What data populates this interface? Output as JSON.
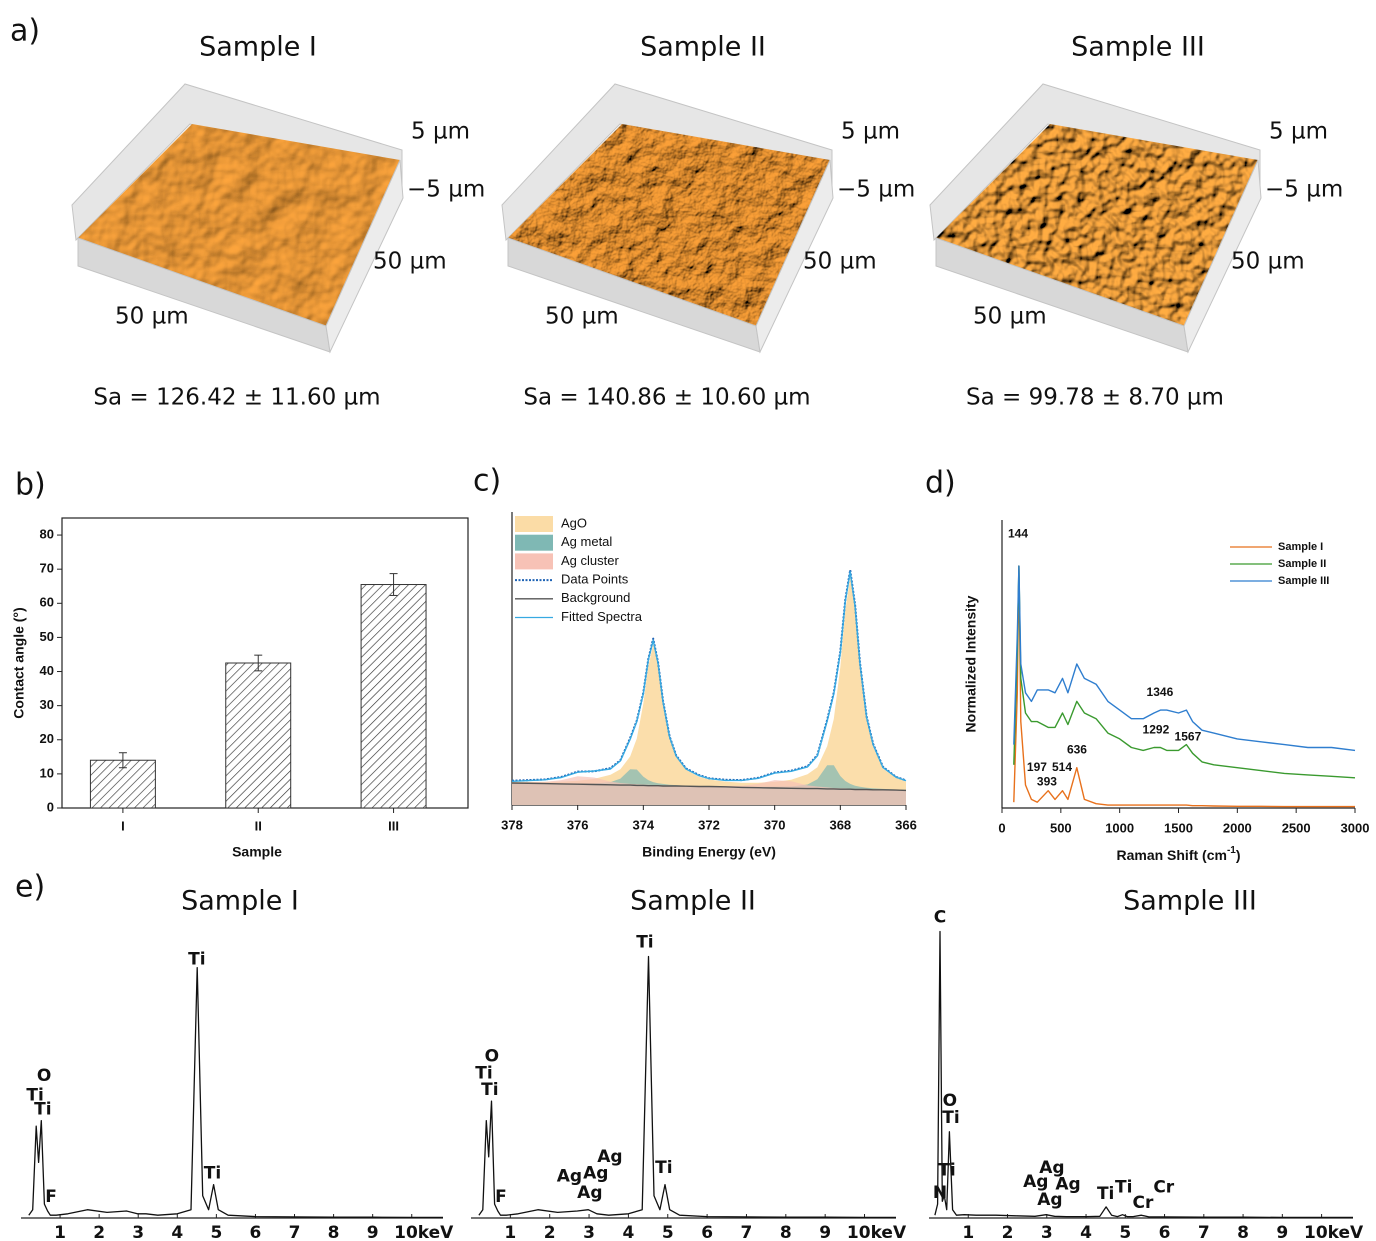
{
  "surfaces": {
    "panel": "a)",
    "items": [
      {
        "title": "Sample I",
        "z_max": "5 µm",
        "z_min": "−5 µm",
        "y_extent": "50 µm",
        "x_extent": "50 µm",
        "roughness": "Sa = 126.42 ± 11.60 µm"
      },
      {
        "title": "Sample II",
        "z_max": "5 µm",
        "z_min": "−5 µm",
        "y_extent": "50 µm",
        "x_extent": "50 µm",
        "roughness": "Sa = 140.86 ± 10.60 µm"
      },
      {
        "title": "Sample III",
        "z_max": "5 µm",
        "z_min": "−5 µm",
        "y_extent": "50 µm",
        "x_extent": "50 µm",
        "roughness": "Sa = 99.78 ± 8.70 µm"
      }
    ]
  },
  "chart_data": [
    {
      "type": "bar",
      "panel": "b)",
      "xlabel": "Sample",
      "ylabel": "Contact angle (°)",
      "categories": [
        "I",
        "II",
        "III"
      ],
      "values": [
        14,
        42.5,
        65.5
      ],
      "errors": [
        2.2,
        2.3,
        3.2
      ],
      "ylim": [
        0,
        85
      ],
      "yticks": [
        0,
        10,
        20,
        30,
        40,
        50,
        60,
        70,
        80
      ],
      "color": "#333333",
      "hatch": true
    },
    {
      "type": "line",
      "panel": "c)",
      "xlabel": "Binding Energy (eV)",
      "legend": "upper left",
      "xlim": [
        378,
        366
      ],
      "xticks": [
        378,
        376,
        374,
        372,
        370,
        368,
        366
      ],
      "ylim": [
        0,
        100
      ],
      "x": [
        378,
        377,
        376.5,
        376,
        375.5,
        375,
        374.7,
        374.4,
        374.2,
        374,
        373.85,
        373.7,
        373.55,
        373.4,
        373.2,
        373,
        372.7,
        372.3,
        372,
        371.5,
        371,
        370.5,
        370,
        369.5,
        369,
        368.7,
        368.4,
        368.2,
        368,
        367.85,
        367.7,
        367.55,
        367.4,
        367.2,
        367,
        366.7,
        366.3,
        366
      ],
      "series": [
        {
          "name": "AgO",
          "color": "#fbdca6",
          "style": "area",
          "values": [
            7.9,
            7.9,
            8.0,
            8.3,
            8.9,
            10.3,
            12.2,
            16.6,
            22.7,
            34.6,
            47.3,
            54.8,
            47.3,
            34.4,
            22.6,
            16.3,
            12.0,
            9.6,
            8.7,
            8.0,
            7.6,
            7.6,
            7.9,
            8.6,
            10.5,
            12.9,
            20.1,
            29.4,
            47.1,
            66.4,
            77.6,
            66.3,
            47.0,
            29.1,
            19.8,
            12.4,
            9.2,
            8.0
          ]
        },
        {
          "name": "Ag metal",
          "color": "#7fb8b4",
          "style": "area",
          "values": [
            7.5,
            7.4,
            7.3,
            7.3,
            7.3,
            7.8,
            9.0,
            12.2,
            12.1,
            9.7,
            8.5,
            7.8,
            7.4,
            7.2,
            6.9,
            6.8,
            6.6,
            6.5,
            6.4,
            6.3,
            6.3,
            6.2,
            6.2,
            6.3,
            7.0,
            8.8,
            13.6,
            13.6,
            9.9,
            8.2,
            7.2,
            6.6,
            6.2,
            5.9,
            5.7,
            5.5,
            5.3,
            5.2
          ]
        },
        {
          "name": "Ag cluster",
          "color": "#f7c2b6",
          "style": "area",
          "values": [
            7.7,
            7.9,
            8.5,
            9.8,
            9.4,
            8.0,
            7.5,
            7.2,
            7.1,
            7.0,
            6.9,
            6.8,
            6.8,
            6.7,
            6.7,
            6.6,
            6.5,
            6.5,
            6.5,
            6.5,
            6.6,
            7.2,
            8.5,
            8.1,
            6.7,
            6.3,
            6.0,
            5.8,
            5.7,
            5.7,
            5.6,
            5.5,
            5.5,
            5.4,
            5.4,
            5.3,
            5.2,
            5.1
          ]
        },
        {
          "name": "Data Points",
          "color": "#1f63b5",
          "style": "dotted",
          "values": [
            8.3,
            8.7,
            9.6,
            11.4,
            11.5,
            12.6,
            15.3,
            22.9,
            28.8,
            38.3,
            49.8,
            56.8,
            48.6,
            35.6,
            23.4,
            16.9,
            12.5,
            10.2,
            9.1,
            8.6,
            8.5,
            9.3,
            11.1,
            11.7,
            13.2,
            17.1,
            29.1,
            38.4,
            52.4,
            70.1,
            80.2,
            68.3,
            48.5,
            30.2,
            20.8,
            13.0,
            9.6,
            8.4
          ]
        },
        {
          "name": "Background",
          "color": "#555555",
          "style": "line",
          "values": [
            7.5,
            7.3,
            7.2,
            7.1,
            7.0,
            6.9,
            6.8,
            6.8,
            6.7,
            6.7,
            6.6,
            6.6,
            6.6,
            6.5,
            6.5,
            6.5,
            6.4,
            6.3,
            6.3,
            6.2,
            6.0,
            5.9,
            5.8,
            5.7,
            5.6,
            5.6,
            5.5,
            5.5,
            5.4,
            5.4,
            5.4,
            5.3,
            5.3,
            5.3,
            5.2,
            5.2,
            5.1,
            5.0
          ]
        },
        {
          "name": "Fitted Spectra",
          "color": "#36a9e1",
          "style": "line",
          "values": [
            8.1,
            8.6,
            9.4,
            11.2,
            11.6,
            12.3,
            15.1,
            22.5,
            28.5,
            37.9,
            49.5,
            56.2,
            48.3,
            35.2,
            23.2,
            16.7,
            12.3,
            10.0,
            9.0,
            8.4,
            8.4,
            9.1,
            10.9,
            11.5,
            13.0,
            16.8,
            28.7,
            37.9,
            51.9,
            69.5,
            79.6,
            67.7,
            48.1,
            29.9,
            20.5,
            12.8,
            9.5,
            8.3
          ]
        }
      ]
    },
    {
      "type": "line",
      "panel": "d)",
      "xlabel": {
        "text": "Raman Shift (cm",
        "superscript": "-1",
        "suffix": ")"
      },
      "ylabel": "Normalized Intensity",
      "legend": "upper right",
      "xlim": [
        0,
        3000
      ],
      "xticks": [
        0,
        500,
        1000,
        1500,
        2000,
        2500,
        3000
      ],
      "ylim": [
        0,
        100
      ],
      "x": [
        100,
        130,
        144,
        160,
        200,
        250,
        300,
        393,
        450,
        514,
        560,
        636,
        700,
        800,
        900,
        1000,
        1100,
        1200,
        1292,
        1346,
        1400,
        1500,
        1567,
        1620,
        1700,
        1800,
        2000,
        2200,
        2400,
        2600,
        2800,
        3000
      ],
      "series": [
        {
          "name": "Sample I",
          "color": "#e8711c",
          "values": [
            2,
            40,
            84,
            30,
            8,
            3,
            2,
            6,
            3,
            6,
            3,
            14,
            3,
            1.5,
            1,
            1,
            1,
            1,
            1,
            1,
            1,
            1,
            1,
            0.8,
            0.8,
            0.7,
            0.6,
            0.6,
            0.5,
            0.5,
            0.5,
            0.5
          ]
        },
        {
          "name": "Sample II",
          "color": "#3a9a2f",
          "values": [
            15,
            55,
            84,
            45,
            33,
            30,
            30,
            28,
            28,
            33,
            29,
            37,
            33,
            31,
            26,
            24,
            21,
            20,
            21,
            21,
            20,
            20,
            22,
            19,
            16,
            15,
            14,
            13,
            12,
            11.5,
            11,
            10.5
          ]
        },
        {
          "name": "Sample III",
          "color": "#2f7ecf",
          "values": [
            22,
            60,
            84,
            50,
            40,
            37,
            41,
            41,
            40,
            45,
            40,
            50,
            45,
            43,
            37,
            34,
            31,
            31,
            33,
            34,
            34,
            33,
            34,
            30,
            27,
            26,
            24,
            23,
            22,
            21,
            21,
            20
          ]
        }
      ],
      "annotations": [
        {
          "text": 144,
          "x": 136,
          "y": 95,
          "color": "#8b4513"
        },
        {
          "text": 197,
          "x": 297,
          "y": 14,
          "color": "#8b4513"
        },
        {
          "text": 393,
          "x": 382,
          "y": 9,
          "color": "#8b4513"
        },
        {
          "text": 514,
          "x": 510,
          "y": 14,
          "color": "#8b4513"
        },
        {
          "text": 636,
          "x": 637,
          "y": 20,
          "color": "#8b4513"
        },
        {
          "text": 1292,
          "x": 1308,
          "y": 27,
          "color": "#3a9a2f"
        },
        {
          "text": 1567,
          "x": 1580,
          "y": 24.5,
          "color": "#3a9a2f"
        },
        {
          "text": 1346,
          "x": 1342,
          "y": 40,
          "color": "#1f4e79"
        }
      ]
    },
    {
      "type": "line",
      "panel": "e)",
      "title": "Sample I",
      "color": "#111111",
      "xlim": [
        0,
        10.8
      ],
      "xticks": [
        1,
        2,
        3,
        4,
        5,
        6,
        7,
        8,
        9,
        {
          "value": 10,
          "label": "10keV"
        }
      ],
      "ylim": [
        0,
        110
      ],
      "x": [
        0.2,
        0.3,
        0.39,
        0.45,
        0.52,
        0.6,
        0.68,
        0.75,
        0.9,
        1.2,
        1.7,
        2.2,
        2.7,
        2.98,
        3.2,
        3.5,
        4.0,
        4.35,
        4.51,
        4.65,
        4.8,
        4.93,
        5.05,
        5.3,
        6,
        7,
        8,
        9,
        10,
        10.8
      ],
      "values": [
        1,
        3,
        33,
        20,
        35,
        5,
        2.5,
        1,
        1,
        1.5,
        3,
        2,
        2.5,
        1.5,
        1.5,
        1,
        1.5,
        3,
        90,
        8,
        3,
        12,
        3,
        1,
        0.5,
        0.4,
        0.3,
        0.3,
        0.2,
        0.2
      ],
      "annotations": [
        {
          "text": "O",
          "x": 0.59,
          "y": 51
        },
        {
          "text": "Ti",
          "x": 0.36,
          "y": 44
        },
        {
          "text": "Ti",
          "x": 0.56,
          "y": 39
        },
        {
          "text": "Ti",
          "x": 4.5,
          "y": 93
        },
        {
          "text": "F",
          "x": 0.77,
          "y": 7.5
        },
        {
          "text": "Ti",
          "x": 4.9,
          "y": 16
        }
      ]
    },
    {
      "type": "line",
      "title": "Sample II",
      "color": "#111111",
      "xlim": [
        0,
        10.8
      ],
      "xticks": [
        1,
        2,
        3,
        4,
        5,
        6,
        7,
        8,
        9,
        {
          "value": 10,
          "label": "10keV"
        }
      ],
      "ylim": [
        0,
        110
      ],
      "x": [
        0.2,
        0.3,
        0.39,
        0.45,
        0.52,
        0.6,
        0.68,
        0.75,
        0.9,
        1.2,
        1.7,
        2.2,
        2.7,
        2.98,
        3.2,
        3.5,
        4.0,
        4.35,
        4.51,
        4.65,
        4.8,
        4.93,
        5.05,
        5.3,
        6,
        7,
        8,
        9,
        10,
        10.8
      ],
      "values": [
        1,
        3,
        35,
        22,
        42,
        5,
        2.5,
        1,
        1,
        1.5,
        3,
        2,
        2.5,
        3,
        1.5,
        1,
        1.5,
        3,
        94,
        8,
        3,
        12,
        3,
        1,
        0.5,
        0.4,
        0.3,
        0.3,
        0.2,
        0.2
      ],
      "annotations": [
        {
          "text": "O",
          "x": 0.53,
          "y": 58
        },
        {
          "text": "Ti",
          "x": 0.33,
          "y": 52
        },
        {
          "text": "Ti",
          "x": 0.48,
          "y": 46
        },
        {
          "text": "Ti",
          "x": 4.42,
          "y": 99
        },
        {
          "text": "F",
          "x": 0.76,
          "y": 7.5
        },
        {
          "text": "Ag",
          "x": 2.5,
          "y": 15
        },
        {
          "text": "Ag",
          "x": 3.17,
          "y": 16
        },
        {
          "text": "Ag",
          "x": 3.53,
          "y": 22
        },
        {
          "text": "Ag",
          "x": 3.02,
          "y": 9
        },
        {
          "text": "Ti",
          "x": 4.9,
          "y": 18
        }
      ]
    },
    {
      "type": "line",
      "title": "Sample III",
      "color": "#111111",
      "xlim": [
        0,
        10.8
      ],
      "xticks": [
        1,
        2,
        3,
        4,
        5,
        6,
        7,
        8,
        9,
        {
          "value": 10,
          "label": "10keV"
        }
      ],
      "ylim": [
        0,
        110
      ],
      "x": [
        0.15,
        0.22,
        0.28,
        0.34,
        0.39,
        0.45,
        0.52,
        0.6,
        0.7,
        0.9,
        1.2,
        1.7,
        2.2,
        2.7,
        2.98,
        3.2,
        3.5,
        4.0,
        4.35,
        4.51,
        4.65,
        4.8,
        4.93,
        5.05,
        5.2,
        5.41,
        5.6,
        6,
        7,
        8,
        9,
        10,
        10.8
      ],
      "values": [
        1,
        5,
        103,
        6,
        8,
        3,
        31,
        3,
        1,
        1.2,
        1,
        1,
        0.8,
        0.6,
        1.2,
        0.6,
        0.5,
        0.5,
        0.6,
        4,
        1,
        0.5,
        1.2,
        0.5,
        0.5,
        1,
        0.4,
        0.4,
        0.3,
        0.3,
        0.2,
        0.2,
        0.2
      ],
      "annotations": [
        {
          "text": "C",
          "x": 0.28,
          "y": 108
        },
        {
          "text": "O",
          "x": 0.53,
          "y": 42
        },
        {
          "text": "Ti",
          "x": 0.56,
          "y": 36
        },
        {
          "text": "Ti",
          "x": 0.46,
          "y": 17
        },
        {
          "text": "N",
          "x": 0.28,
          "y": 9
        },
        {
          "text": "Ag",
          "x": 3.13,
          "y": 18
        },
        {
          "text": "Ag",
          "x": 2.72,
          "y": 13
        },
        {
          "text": "Ag",
          "x": 3.54,
          "y": 12
        },
        {
          "text": "Ag",
          "x": 3.08,
          "y": 6.5
        },
        {
          "text": "Ti",
          "x": 4.5,
          "y": 8.6
        },
        {
          "text": "Ti",
          "x": 4.96,
          "y": 11
        },
        {
          "text": "Cr",
          "x": 5.45,
          "y": 5.4
        },
        {
          "text": "Cr",
          "x": 5.98,
          "y": 11
        }
      ]
    }
  ]
}
